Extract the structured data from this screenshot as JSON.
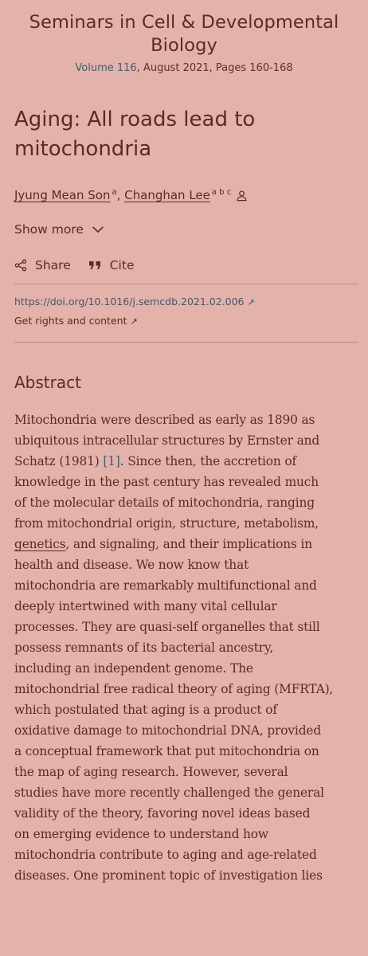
{
  "journal": {
    "title": "Seminars in Cell & Developmental Biology",
    "volume": "Volume 116",
    "date_pages": ", August 2021, Pages 160-168"
  },
  "article": {
    "title": "Aging: All roads lead to mitochondria",
    "authors": [
      {
        "name": "Jyung Mean Son",
        "affiliations": "a"
      },
      {
        "name": "Changhan Lee",
        "affiliations": "a b c"
      }
    ],
    "author_separator": ", "
  },
  "controls": {
    "show_more": "Show more",
    "share": "Share",
    "cite": "Cite"
  },
  "links": {
    "doi": "https://doi.org/10.1016/j.semcdb.2021.02.006",
    "rights": "Get rights and content"
  },
  "abstract": {
    "heading": "Abstract",
    "lines": [
      [
        "Mitochondria were described as early as 1890 as"
      ],
      [
        "ubiquitous intracellular structures by Ernster and"
      ],
      [
        "Schatz (1981) ",
        "[1]",
        ". Since then, the accretion of"
      ],
      [
        "knowledge in the past century has revealed much"
      ],
      [
        "of the molecular details of mitochondria, ranging"
      ],
      [
        "from mitochondrial origin, structure, metabolism,"
      ],
      [
        "",
        "genetics",
        ", and signaling, and their implications in"
      ],
      [
        "health and disease. We now know that"
      ],
      [
        "mitochondria are remarkably multifunctional and"
      ],
      [
        "deeply intertwined with many vital cellular"
      ],
      [
        "processes. They are quasi-self organelles that still"
      ],
      [
        "possess remnants of its bacterial ancestry,"
      ],
      [
        "including an independent genome. The"
      ],
      [
        "mitochondrial free radical theory of aging (MFRTA),"
      ],
      [
        "which postulated that aging is a product of"
      ],
      [
        "oxidative damage to mitochondrial DNA, provided"
      ],
      [
        "a conceptual framework that put mitochondria on"
      ],
      [
        "the map of aging research. However, several"
      ],
      [
        "studies have more recently challenged the general"
      ],
      [
        "validity of the theory, favoring novel ideas based"
      ],
      [
        "on emerging evidence to understand how"
      ],
      [
        "mitochondria contribute to aging and age-related"
      ],
      [
        "diseases. One prominent topic of investigation lies"
      ]
    ]
  },
  "colors": {
    "background": "#e3b2ab",
    "text": "#5a2c24",
    "link": "#3f5f74"
  }
}
